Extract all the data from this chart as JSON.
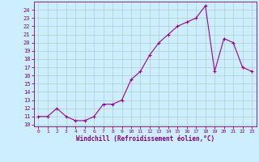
{
  "x": [
    0,
    1,
    2,
    3,
    4,
    5,
    6,
    7,
    8,
    9,
    10,
    11,
    12,
    13,
    14,
    15,
    16,
    17,
    18,
    19,
    20,
    21,
    22,
    23
  ],
  "y": [
    11,
    11,
    12,
    11,
    10.5,
    10.5,
    11,
    12.5,
    12.5,
    13,
    15.5,
    16.5,
    18.5,
    20,
    21,
    22,
    22.5,
    23,
    24.5,
    16.5,
    20.5,
    20,
    17,
    16.5
  ],
  "line_color": "#990099",
  "marker": "+",
  "background_color": "#cceeff",
  "grid_color": "#aaddcc",
  "ylabel_ticks": [
    10,
    11,
    12,
    13,
    14,
    15,
    16,
    17,
    18,
    19,
    20,
    21,
    22,
    23,
    24
  ],
  "xlabel": "Windchill (Refroidissement éolien,°C)",
  "ylim_min": 9.8,
  "ylim_max": 25.0,
  "xlim_min": -0.5,
  "xlim_max": 23.5
}
